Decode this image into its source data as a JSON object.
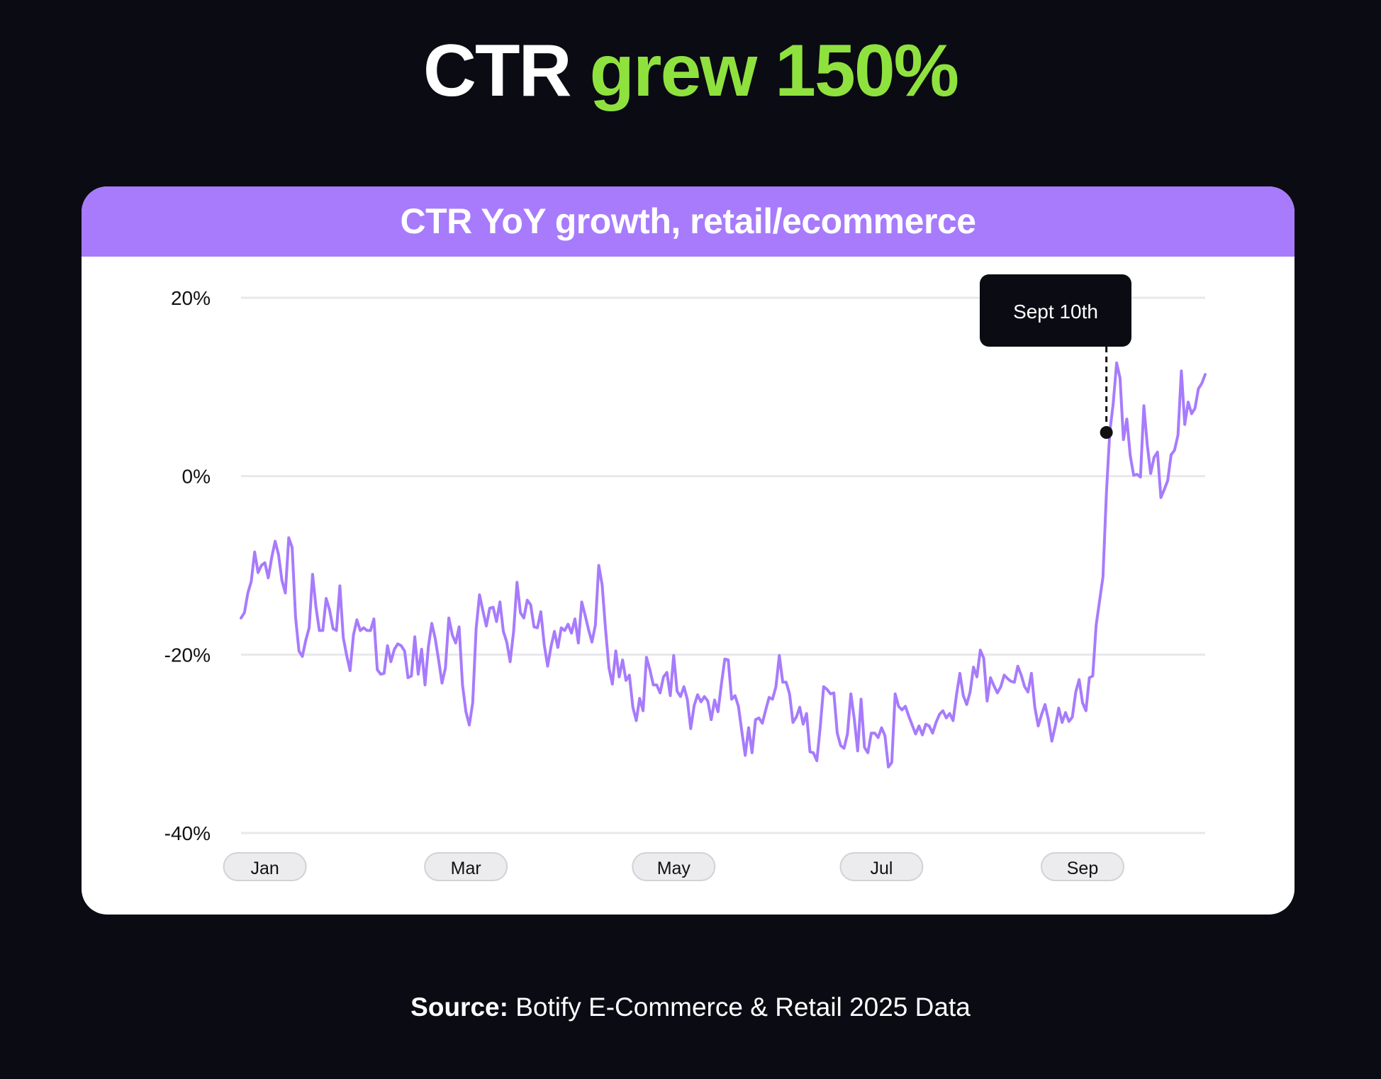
{
  "headline": {
    "part1": "CTR",
    "part2": "grew 150%"
  },
  "source": {
    "label": "Source:",
    "text": "Botify E-Commerce & Retail 2025 Data"
  },
  "colors": {
    "background": "#0b0b14",
    "accent_green": "#8fe23e",
    "line": "#a77bfc",
    "header": "#a77bfc",
    "annotation": "#0b0b14"
  },
  "chart_data": {
    "type": "line",
    "title": "CTR YoY growth, retail/ecommerce",
    "xlabel": "",
    "ylabel": "",
    "y_unit": "%",
    "ylim": [
      -40,
      20
    ],
    "yticks": [
      {
        "value": 20,
        "label": "20%"
      },
      {
        "value": 0,
        "label": "0%"
      },
      {
        "value": -20,
        "label": "-20%"
      },
      {
        "value": -40,
        "label": "-40%"
      }
    ],
    "x_tick_labels": [
      {
        "index": 7,
        "label": "Jan"
      },
      {
        "index": 66,
        "label": "Mar"
      },
      {
        "index": 127,
        "label": "May"
      },
      {
        "index": 188,
        "label": "Jul"
      },
      {
        "index": 247,
        "label": "Sep"
      }
    ],
    "grid": true,
    "legend": "none",
    "annotation": {
      "label": "Sept 10th",
      "index": 254,
      "value": 4.9
    },
    "series": [
      {
        "values": [
          -15.9,
          -15.3,
          -13.1,
          -11.8,
          -8.5,
          -10.8,
          -10,
          -9.7,
          -11.4,
          -9.1,
          -7.3,
          -8.8,
          -11.7,
          -13.1,
          -6.9,
          -8,
          -15.8,
          -19.6,
          -20.2,
          -18.4,
          -17,
          -11,
          -14.7,
          -17.3,
          -17.3,
          -13.7,
          -15,
          -17.1,
          -17.3,
          -12.3,
          -18.1,
          -20.1,
          -21.8,
          -17.8,
          -16.1,
          -17.3,
          -17,
          -17.3,
          -17.3,
          -16,
          -21.7,
          -22.2,
          -22.1,
          -19,
          -20.8,
          -19.4,
          -18.8,
          -19,
          -19.6,
          -22.6,
          -22.4,
          -18,
          -22.2,
          -19.4,
          -23.4,
          -19.1,
          -16.5,
          -18.2,
          -20.6,
          -23.2,
          -21.5,
          -15.9,
          -17.8,
          -18.7,
          -16.9,
          -23.4,
          -26.4,
          -27.9,
          -25.4,
          -17.1,
          -13.3,
          -15.1,
          -16.8,
          -14.8,
          -14.7,
          -16.3,
          -14.1,
          -17.4,
          -18.6,
          -20.8,
          -17.4,
          -11.9,
          -15.3,
          -15.9,
          -13.9,
          -14.4,
          -16.9,
          -17,
          -15.2,
          -18.9,
          -21.3,
          -19.1,
          -17.4,
          -19.2,
          -17,
          -17.3,
          -16.6,
          -17.6,
          -16,
          -18.7,
          -14.1,
          -15.6,
          -17.2,
          -18.6,
          -16.7,
          -10,
          -12.2,
          -17.2,
          -21.5,
          -23.3,
          -19.6,
          -22.5,
          -20.6,
          -22.9,
          -22.3,
          -25.9,
          -27.4,
          -24.9,
          -26.3,
          -20.3,
          -21.7,
          -23.4,
          -23.4,
          -24.3,
          -22.5,
          -22,
          -24.6,
          -20.1,
          -24.1,
          -24.7,
          -23.6,
          -25,
          -28.3,
          -25.7,
          -24.5,
          -25.3,
          -24.7,
          -25.2,
          -27.3,
          -25.1,
          -26.4,
          -23.3,
          -20.5,
          -20.6,
          -25,
          -24.6,
          -25.8,
          -28.6,
          -31.3,
          -28.2,
          -31,
          -27.3,
          -27.1,
          -27.7,
          -26.2,
          -24.8,
          -25,
          -23.6,
          -20.1,
          -23.1,
          -23.1,
          -24.4,
          -27.6,
          -27,
          -25.9,
          -27.8,
          -26.6,
          -30.9,
          -31,
          -31.9,
          -28.1,
          -23.6,
          -23.9,
          -24.4,
          -24.3,
          -28.8,
          -30.2,
          -30.5,
          -28.9,
          -24.4,
          -27.2,
          -30.8,
          -25,
          -30.4,
          -31,
          -28.8,
          -28.8,
          -29.3,
          -28.2,
          -29.1,
          -32.6,
          -32.1,
          -24.4,
          -25.8,
          -26.2,
          -25.8,
          -26.9,
          -27.9,
          -28.9,
          -28,
          -29,
          -27.8,
          -28,
          -28.8,
          -27.6,
          -26.7,
          -26.3,
          -27.1,
          -26.6,
          -27.4,
          -24.5,
          -22.1,
          -24.6,
          -25.6,
          -24.2,
          -21.4,
          -22.5,
          -19.5,
          -20.4,
          -25.2,
          -22.6,
          -23.5,
          -24.3,
          -23.6,
          -22.3,
          -22.7,
          -23,
          -23.1,
          -21.3,
          -22.3,
          -23.6,
          -24.2,
          -22.1,
          -25.9,
          -28,
          -26.7,
          -25.6,
          -27.3,
          -29.7,
          -28,
          -26,
          -27.6,
          -26.5,
          -27.5,
          -27,
          -24.2,
          -22.8,
          -25.4,
          -26.3,
          -22.6,
          -22.4,
          -16.7,
          -14,
          -11.3,
          -2,
          4.9,
          8.1,
          12.7,
          11,
          4.1,
          6.4,
          2.3,
          0.1,
          0.2,
          -0.1,
          7.9,
          3.5,
          0.3,
          2.1,
          2.7,
          -2.4,
          -1.5,
          -0.5,
          2.4,
          2.9,
          4.6,
          11.8,
          5.8,
          8.3,
          7,
          7.6,
          9.8,
          10.4,
          11.4
        ]
      }
    ]
  }
}
